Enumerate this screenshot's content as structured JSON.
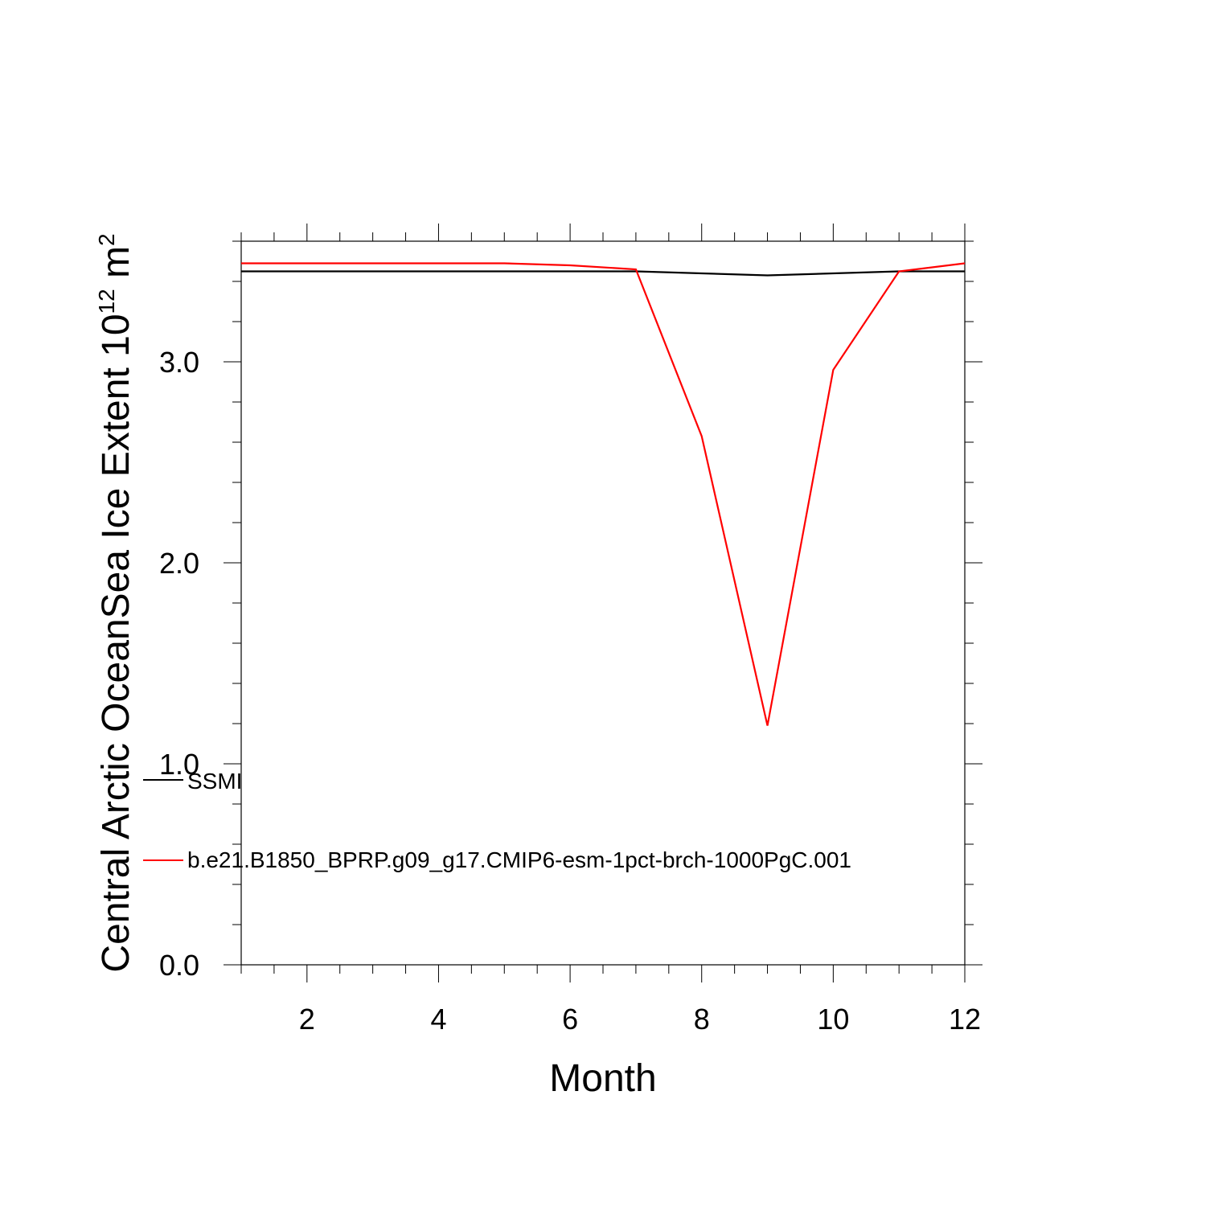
{
  "chart_data": {
    "type": "line",
    "xlabel": "Month",
    "ylabel": "Central Arctic OceanSea Ice Extent 10",
    "ylabel_exponent": "12",
    "ylabel_unit": " m",
    "ylabel_unit_exponent": "2",
    "xlim": [
      1,
      12
    ],
    "ylim": [
      0,
      3.6
    ],
    "x_ticks": [
      2,
      4,
      6,
      8,
      10,
      12
    ],
    "x_tick_labels": [
      "2",
      "4",
      "6",
      "8",
      "10",
      "12"
    ],
    "y_ticks": [
      0,
      1,
      2,
      3
    ],
    "y_tick_labels": [
      "0.0",
      "1.0",
      "2.0",
      "3.0"
    ],
    "x": [
      1,
      2,
      3,
      4,
      5,
      6,
      7,
      8,
      9,
      10,
      11,
      12
    ],
    "series": [
      {
        "name": "SSMI",
        "color": "#000000",
        "values": [
          3.45,
          3.45,
          3.45,
          3.45,
          3.45,
          3.45,
          3.45,
          3.44,
          3.43,
          3.44,
          3.45,
          3.45
        ]
      },
      {
        "name": "b.e21.B1850_BPRP.g09_g17.CMIP6-esm-1pct-brch-1000PgC.001",
        "color": "#ff0000",
        "values": [
          3.49,
          3.49,
          3.49,
          3.49,
          3.49,
          3.48,
          3.46,
          2.63,
          1.19,
          2.96,
          3.45,
          3.49
        ]
      }
    ],
    "legend_position": "lower-left",
    "grid": false
  }
}
